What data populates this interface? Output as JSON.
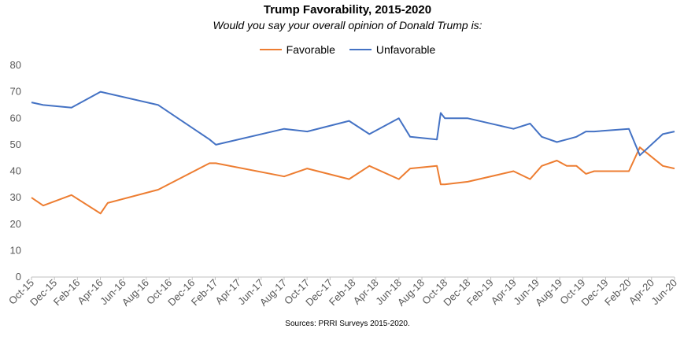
{
  "chart_data": {
    "type": "line",
    "title": "Trump Favorability, 2015-2020",
    "subtitle": "Would you say your overall opinion of Donald Trump is:",
    "source": "Sources: PRRI Surveys 2015-2020.",
    "legend_position": "top",
    "ylim": [
      0,
      80
    ],
    "y_ticks": [
      0,
      10,
      20,
      30,
      40,
      50,
      60,
      70,
      80
    ],
    "x_range": [
      "2015-10",
      "2020-06"
    ],
    "x_tick_labels": [
      "Oct-15",
      "Dec-15",
      "Feb-16",
      "Apr-16",
      "Jun-16",
      "Aug-16",
      "Oct-16",
      "Dec-16",
      "Feb-17",
      "Apr-17",
      "Jun-17",
      "Aug-17",
      "Oct-17",
      "Dec-17",
      "Feb-18",
      "Apr-18",
      "Jun-18",
      "Aug-18",
      "Oct-18",
      "Dec-18",
      "Feb-19",
      "Apr-19",
      "Jun-19",
      "Aug-19",
      "Oct-19",
      "Dec-19",
      "Feb-20",
      "Apr-20",
      "Jun-20"
    ],
    "grid": false,
    "series": [
      {
        "name": "Favorable",
        "color": "#ED7D31",
        "points": [
          [
            "2015-10-01",
            30
          ],
          [
            "2015-11-01",
            27
          ],
          [
            "2016-01-15",
            31
          ],
          [
            "2016-04-01",
            24
          ],
          [
            "2016-04-20",
            28
          ],
          [
            "2016-09-01",
            33
          ],
          [
            "2017-01-15",
            43
          ],
          [
            "2017-02-01",
            43
          ],
          [
            "2017-08-01",
            38
          ],
          [
            "2017-10-01",
            41
          ],
          [
            "2018-01-20",
            37
          ],
          [
            "2018-03-15",
            42
          ],
          [
            "2018-06-01",
            37
          ],
          [
            "2018-07-01",
            41
          ],
          [
            "2018-09-10",
            42
          ],
          [
            "2018-09-20",
            35
          ],
          [
            "2018-10-01",
            35
          ],
          [
            "2018-12-01",
            36
          ],
          [
            "2019-04-01",
            40
          ],
          [
            "2019-05-15",
            37
          ],
          [
            "2019-06-15",
            42
          ],
          [
            "2019-07-25",
            44
          ],
          [
            "2019-08-20",
            42
          ],
          [
            "2019-09-15",
            42
          ],
          [
            "2019-10-10",
            39
          ],
          [
            "2019-11-01",
            40
          ],
          [
            "2020-02-01",
            40
          ],
          [
            "2020-03-01",
            49
          ],
          [
            "2020-05-01",
            42
          ],
          [
            "2020-06-01",
            41
          ]
        ]
      },
      {
        "name": "Unfavorable",
        "color": "#4472C4",
        "points": [
          [
            "2015-10-01",
            66
          ],
          [
            "2015-11-01",
            65
          ],
          [
            "2016-01-15",
            64
          ],
          [
            "2016-04-01",
            70
          ],
          [
            "2016-09-01",
            65
          ],
          [
            "2017-01-15",
            52
          ],
          [
            "2017-02-01",
            50
          ],
          [
            "2017-08-01",
            56
          ],
          [
            "2017-10-01",
            55
          ],
          [
            "2018-01-20",
            59
          ],
          [
            "2018-03-15",
            54
          ],
          [
            "2018-06-01",
            60
          ],
          [
            "2018-07-01",
            53
          ],
          [
            "2018-09-10",
            52
          ],
          [
            "2018-09-20",
            62
          ],
          [
            "2018-10-01",
            60
          ],
          [
            "2018-12-01",
            60
          ],
          [
            "2019-04-01",
            56
          ],
          [
            "2019-05-15",
            58
          ],
          [
            "2019-06-15",
            53
          ],
          [
            "2019-07-25",
            51
          ],
          [
            "2019-08-20",
            52
          ],
          [
            "2019-09-15",
            53
          ],
          [
            "2019-10-10",
            55
          ],
          [
            "2019-11-01",
            55
          ],
          [
            "2020-02-01",
            56
          ],
          [
            "2020-03-01",
            46
          ],
          [
            "2020-05-01",
            54
          ],
          [
            "2020-06-01",
            55
          ]
        ]
      }
    ]
  }
}
